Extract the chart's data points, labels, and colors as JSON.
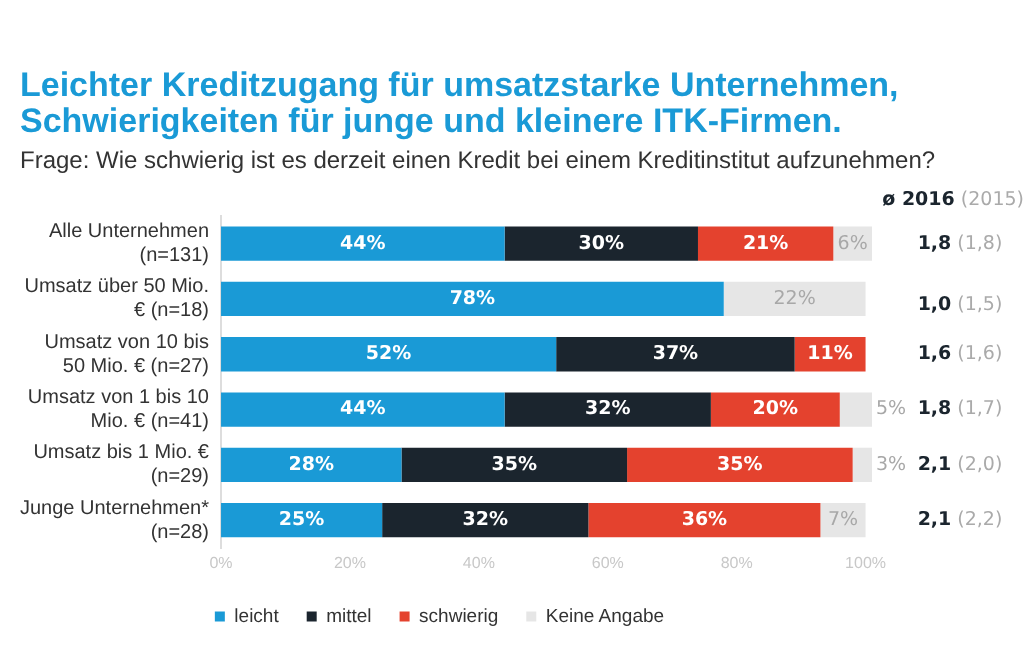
{
  "chart_data": {
    "type": "bar",
    "orientation": "horizontal",
    "stacked": true,
    "title": "Leichter Kreditzugang für umsatzstarke Unternehmen, Schwierigkeiten für junge und kleinere ITK-Firmen.",
    "subtitle": "Frage: Wie schwierig ist es derzeit einen Kredit bei einem Kreditinstitut aufzunehmen?",
    "categories": [
      "Alle Unternehmen (n=131)",
      "Umsatz über 50 Mio. € (n=18)",
      "Umsatz von 10 bis 50 Mio. € (n=27)",
      "Umsatz von 1 bis 10 Mio. € (n=41)",
      "Umsatz bis 1 Mio. € (n=29)",
      "Junge Unternehmen* (n=28)"
    ],
    "series": [
      {
        "name": "leicht",
        "color": "#1a9ad6",
        "values": [
          44,
          78,
          52,
          44,
          28,
          25
        ],
        "value_labels": [
          "44%",
          "78%",
          "52%",
          "44%",
          "28%",
          "25%"
        ]
      },
      {
        "name": "mittel",
        "color": "#1b252e",
        "values": [
          30,
          null,
          37,
          32,
          35,
          32
        ],
        "value_labels": [
          "30%",
          null,
          "37%",
          "32%",
          "35%",
          "32%"
        ]
      },
      {
        "name": "schwierig",
        "color": "#e4422e",
        "values": [
          21,
          null,
          11,
          20,
          35,
          36
        ],
        "value_labels": [
          "21%",
          null,
          "11%",
          "20%",
          "35%",
          "36%"
        ]
      },
      {
        "name": "Keine Angabe",
        "color": "#e6e6e6",
        "values": [
          6,
          22,
          null,
          5,
          3,
          7
        ],
        "value_labels": [
          "6%",
          "22%",
          null,
          "5%",
          "3%",
          "7%"
        ]
      }
    ],
    "xlim": [
      0,
      101
    ],
    "xticks": [
      {
        "value": 0,
        "label": "0%"
      },
      {
        "value": 20,
        "label": "20%"
      },
      {
        "value": 40,
        "label": "40%"
      },
      {
        "value": 60,
        "label": "60%"
      },
      {
        "value": 80,
        "label": "80%"
      },
      {
        "value": 100,
        "label": "100%"
      }
    ],
    "grid": false,
    "legend": "bottom",
    "annotations": [
      "ø 2016 (2015)",
      "1,8 (1,8)",
      "1,0 (1,5)",
      "1,6 (1,6)",
      "1,8 (1,7)",
      "2,1 (2,0)",
      "2,1 (2,2)"
    ]
  }
}
